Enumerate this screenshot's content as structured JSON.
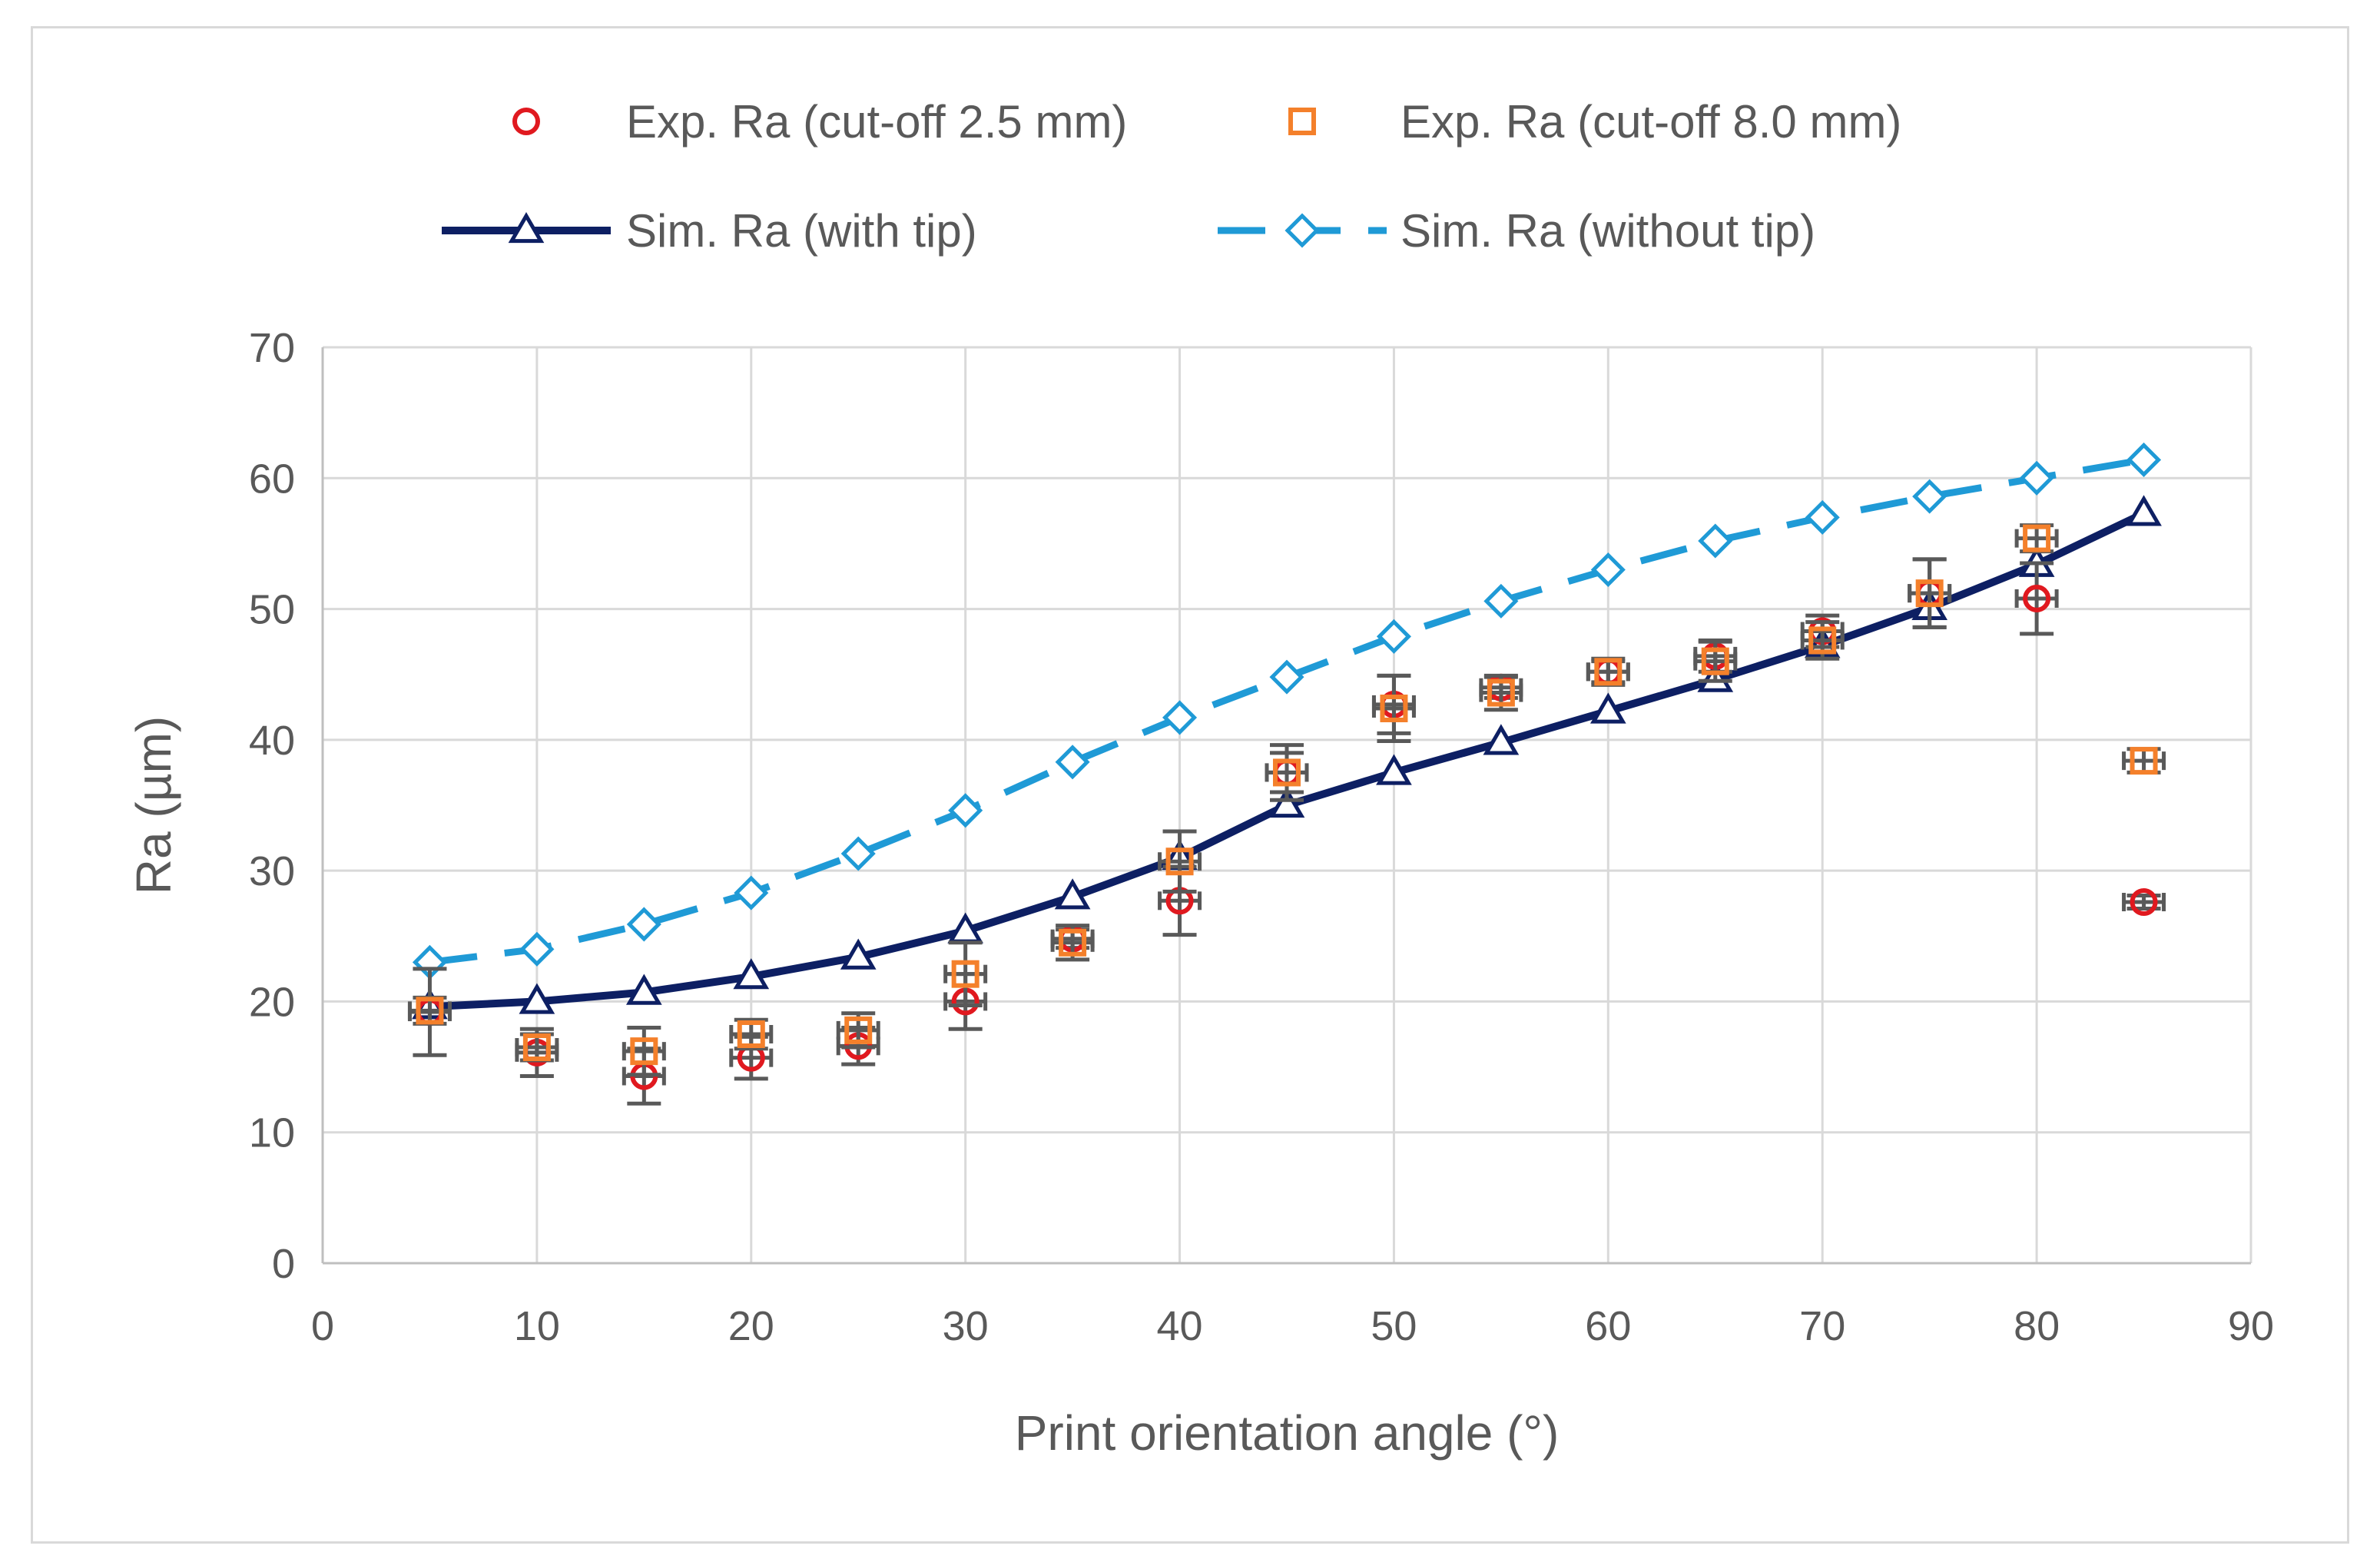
{
  "chart_data": {
    "type": "scatter",
    "title": "",
    "xlabel": "Print orientation angle (°)",
    "ylabel": "Ra (µm)",
    "xlim": [
      0,
      90
    ],
    "ylim": [
      0,
      70
    ],
    "xticks": [
      0,
      10,
      20,
      30,
      40,
      50,
      60,
      70,
      80,
      90
    ],
    "yticks": [
      0,
      10,
      20,
      30,
      40,
      50,
      60,
      70
    ],
    "grid": true,
    "legend_position": "top",
    "series": [
      {
        "name": "Exp. Ra (cut-off 2.5 mm)",
        "kind": "marker",
        "marker": "circle",
        "color": "#e0191f",
        "x": [
          5,
          10,
          15,
          20,
          25,
          30,
          35,
          40,
          45,
          50,
          55,
          60,
          65,
          70,
          75,
          80,
          85
        ],
        "values": [
          19.2,
          16.1,
          14.3,
          15.7,
          16.6,
          20.0,
          24.8,
          27.7,
          37.5,
          42.7,
          44.0,
          45.2,
          46.4,
          48.3,
          51.2,
          50.8,
          27.6
        ],
        "errors": [
          3.3,
          1.8,
          2.1,
          1.6,
          1.4,
          2.1,
          0.7,
          2.6,
          2.1,
          2.2,
          0.8,
          0.8,
          1.2,
          1.2,
          2.6,
          2.7,
          0.5
        ]
      },
      {
        "name": "Exp. Ra (cut-off 8.0 mm)",
        "kind": "marker",
        "marker": "square",
        "color": "#f4802b",
        "x": [
          5,
          10,
          15,
          20,
          25,
          30,
          35,
          40,
          45,
          50,
          55,
          60,
          65,
          70,
          75,
          80,
          85
        ],
        "values": [
          19.3,
          16.5,
          16.2,
          17.5,
          17.8,
          22.1,
          24.5,
          30.7,
          37.5,
          42.4,
          43.6,
          45.2,
          46.0,
          47.6,
          51.2,
          55.4,
          38.4
        ],
        "errors": [
          1.0,
          1.0,
          1.8,
          1.1,
          1.3,
          2.4,
          1.3,
          2.3,
          1.5,
          2.5,
          1.3,
          1.0,
          1.5,
          1.4,
          2.6,
          1.0,
          0.9
        ]
      },
      {
        "name": "Sim. Ra (with tip)",
        "kind": "line",
        "marker": "triangle",
        "color": "#0d1f63",
        "x": [
          5,
          10,
          15,
          20,
          25,
          30,
          35,
          40,
          45,
          50,
          55,
          60,
          65,
          70,
          75,
          80,
          85
        ],
        "values": [
          19.6,
          20.0,
          20.7,
          21.9,
          23.4,
          25.4,
          28.0,
          31.0,
          35.0,
          37.5,
          39.8,
          42.2,
          44.6,
          47.2,
          50.1,
          53.4,
          57.3
        ]
      },
      {
        "name": "Sim. Ra (without tip)",
        "kind": "dashed-line",
        "marker": "diamond",
        "color": "#1f9ad6",
        "x": [
          5,
          10,
          15,
          20,
          25,
          30,
          35,
          40,
          45,
          50,
          55,
          60,
          65,
          70,
          75,
          80,
          85
        ],
        "values": [
          23.0,
          24.0,
          25.9,
          28.3,
          31.3,
          34.6,
          38.3,
          41.7,
          44.8,
          47.9,
          50.6,
          53.0,
          55.2,
          57.0,
          58.6,
          60.0,
          61.4
        ]
      }
    ]
  }
}
